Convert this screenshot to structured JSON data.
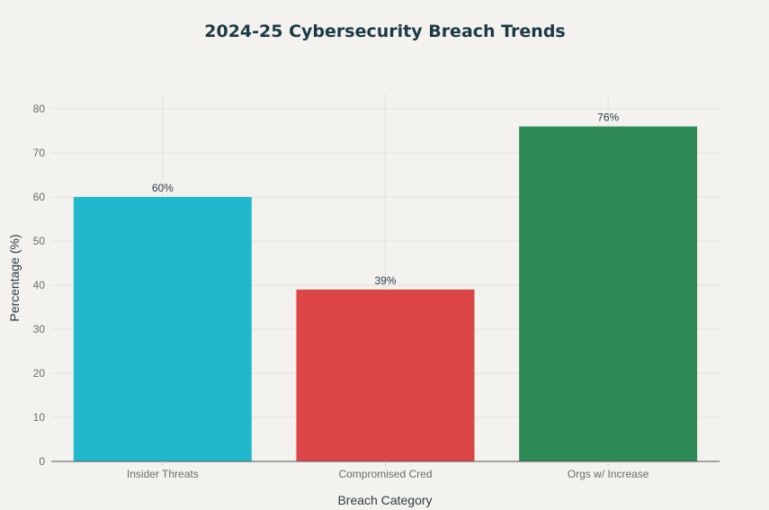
{
  "chart_data": {
    "type": "bar",
    "title": "2024-25 Cybersecurity Breach Trends",
    "xlabel": "Breach Category",
    "ylabel": "Percentage (%)",
    "categories": [
      "Insider Threats",
      "Compromised Cred",
      "Orgs w/ Increase"
    ],
    "values": [
      60,
      39,
      76
    ],
    "data_labels": [
      "60%",
      "39%",
      "76%"
    ],
    "colors": [
      "#1fb8cd",
      "#db4545",
      "#2e8b57"
    ],
    "ylim": [
      0,
      80
    ],
    "yticks": [
      0,
      10,
      20,
      30,
      40,
      50,
      60,
      70,
      80
    ],
    "ytick_labels": [
      "0",
      "10",
      "20",
      "30",
      "40",
      "50",
      "60",
      "70",
      "80"
    ],
    "grid": true,
    "legend": "none"
  }
}
